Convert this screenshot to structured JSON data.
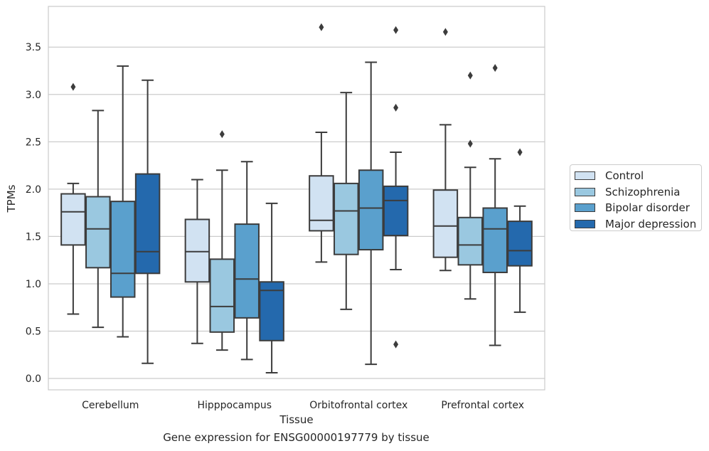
{
  "chart_data": {
    "type": "box",
    "xlabel": "Tissue",
    "ylabel": "TPMs",
    "caption": "Gene expression for ENSG00000197779 by tissue",
    "ylim": [
      -0.12,
      3.93
    ],
    "yticks": [
      "0.0",
      "0.5",
      "1.0",
      "1.5",
      "2.0",
      "2.5",
      "3.0",
      "3.5"
    ],
    "ytick_values": [
      0.0,
      0.5,
      1.0,
      1.5,
      2.0,
      2.5,
      3.0,
      3.5
    ],
    "grid": "horizontal",
    "legend_position": "right-outside",
    "categories": [
      "Cerebellum",
      "Hipppocampus",
      "Orbitofrontal cortex",
      "Prefrontal cortex"
    ],
    "series": [
      {
        "name": "Control",
        "color": "#d1e2f2",
        "boxes": [
          {
            "whisker_low": 0.68,
            "q1": 1.41,
            "median": 1.76,
            "q3": 1.95,
            "whisker_high": 2.06,
            "outliers": [
              3.08
            ]
          },
          {
            "whisker_low": 0.37,
            "q1": 1.02,
            "median": 1.34,
            "q3": 1.68,
            "whisker_high": 2.1,
            "outliers": []
          },
          {
            "whisker_low": 1.23,
            "q1": 1.56,
            "median": 1.67,
            "q3": 2.14,
            "whisker_high": 2.6,
            "outliers": [
              3.71
            ]
          },
          {
            "whisker_low": 1.14,
            "q1": 1.28,
            "median": 1.61,
            "q3": 1.99,
            "whisker_high": 2.68,
            "outliers": [
              3.66
            ]
          }
        ]
      },
      {
        "name": "Schizophrenia",
        "color": "#9ac8e0",
        "boxes": [
          {
            "whisker_low": 0.54,
            "q1": 1.17,
            "median": 1.58,
            "q3": 1.92,
            "whisker_high": 2.83,
            "outliers": []
          },
          {
            "whisker_low": 0.3,
            "q1": 0.49,
            "median": 0.76,
            "q3": 1.26,
            "whisker_high": 2.2,
            "outliers": [
              2.58
            ]
          },
          {
            "whisker_low": 0.73,
            "q1": 1.31,
            "median": 1.77,
            "q3": 2.06,
            "whisker_high": 3.02,
            "outliers": []
          },
          {
            "whisker_low": 0.84,
            "q1": 1.2,
            "median": 1.41,
            "q3": 1.7,
            "whisker_high": 2.23,
            "outliers": [
              2.48,
              3.2
            ]
          }
        ]
      },
      {
        "name": "Bipolar disorder",
        "color": "#5aa0cd",
        "boxes": [
          {
            "whisker_low": 0.44,
            "q1": 0.86,
            "median": 1.11,
            "q3": 1.87,
            "whisker_high": 3.3,
            "outliers": []
          },
          {
            "whisker_low": 0.2,
            "q1": 0.64,
            "median": 1.05,
            "q3": 1.63,
            "whisker_high": 2.29,
            "outliers": []
          },
          {
            "whisker_low": 0.15,
            "q1": 1.36,
            "median": 1.8,
            "q3": 2.2,
            "whisker_high": 3.34,
            "outliers": []
          },
          {
            "whisker_low": 0.35,
            "q1": 1.12,
            "median": 1.58,
            "q3": 1.8,
            "whisker_high": 2.32,
            "outliers": [
              3.28
            ]
          }
        ]
      },
      {
        "name": "Major depression",
        "color": "#2469ad",
        "boxes": [
          {
            "whisker_low": 0.16,
            "q1": 1.11,
            "median": 1.34,
            "q3": 2.16,
            "whisker_high": 3.15,
            "outliers": []
          },
          {
            "whisker_low": 0.06,
            "q1": 0.4,
            "median": 0.93,
            "q3": 1.02,
            "whisker_high": 1.85,
            "outliers": []
          },
          {
            "whisker_low": 1.15,
            "q1": 1.51,
            "median": 1.88,
            "q3": 2.03,
            "whisker_high": 2.39,
            "outliers": [
              0.36,
              2.86,
              3.68
            ]
          },
          {
            "whisker_low": 0.7,
            "q1": 1.19,
            "median": 1.35,
            "q3": 1.66,
            "whisker_high": 1.82,
            "outliers": [
              2.39
            ]
          }
        ]
      }
    ]
  }
}
